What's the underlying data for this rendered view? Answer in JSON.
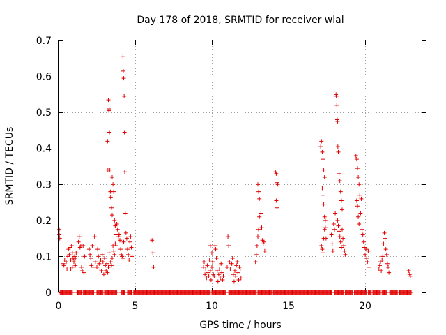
{
  "chart_data": {
    "type": "scatter",
    "title": "Day 178 of 2018, SRMTID for receiver wlal",
    "xlabel": "GPS time / hours",
    "ylabel": "SRMTID / TECUs",
    "xlim": [
      0,
      24
    ],
    "ylim": [
      0,
      0.7
    ],
    "x_ticks": [
      0,
      5,
      10,
      15,
      20
    ],
    "x_tick_labels": [
      "0",
      "5",
      "10",
      "15",
      "20"
    ],
    "y_ticks": [
      0,
      0.1,
      0.2,
      0.3,
      0.4,
      0.5,
      0.6,
      0.7
    ],
    "y_tick_labels": [
      "0",
      "0.1",
      "0.2",
      "0.3",
      "0.4",
      "0.5",
      "0.6",
      "0.7"
    ],
    "grid": true,
    "marker": "plus",
    "color": "#e00000",
    "series": [
      {
        "name": "SRMTID",
        "points": [
          [
            0.05,
            0.175
          ],
          [
            0.05,
            0.16
          ],
          [
            0.08,
            0.15
          ],
          [
            0.3,
            0.08
          ],
          [
            0.35,
            0.075
          ],
          [
            0.4,
            0.09
          ],
          [
            0.5,
            0.085
          ],
          [
            0.55,
            0.065
          ],
          [
            0.6,
            0.1
          ],
          [
            0.65,
            0.12
          ],
          [
            0.7,
            0.105
          ],
          [
            0.75,
            0.125
          ],
          [
            0.8,
            0.09
          ],
          [
            0.85,
            0.13
          ],
          [
            0.9,
            0.11
          ],
          [
            0.95,
            0.095
          ],
          [
            1.0,
            0.085
          ],
          [
            1.05,
            0.1
          ],
          [
            1.1,
            0.075
          ],
          [
            1.15,
            0.11
          ],
          [
            0.8,
            0.065
          ],
          [
            0.9,
            0.07
          ],
          [
            1.0,
            0.09
          ],
          [
            1.1,
            0.095
          ],
          [
            1.3,
            0.14
          ],
          [
            1.35,
            0.155
          ],
          [
            1.4,
            0.125
          ],
          [
            1.45,
            0.13
          ],
          [
            1.5,
            0.07
          ],
          [
            1.55,
            0.06
          ],
          [
            1.6,
            0.13
          ],
          [
            1.65,
            0.055
          ],
          [
            1.7,
            0.1
          ],
          [
            2.0,
            0.12
          ],
          [
            2.05,
            0.105
          ],
          [
            2.1,
            0.095
          ],
          [
            2.15,
            0.075
          ],
          [
            2.2,
            0.13
          ],
          [
            2.25,
            0.07
          ],
          [
            2.35,
            0.155
          ],
          [
            2.4,
            0.085
          ],
          [
            2.5,
            0.07
          ],
          [
            2.55,
            0.12
          ],
          [
            2.6,
            0.1
          ],
          [
            2.65,
            0.08
          ],
          [
            2.7,
            0.065
          ],
          [
            2.75,
            0.09
          ],
          [
            2.8,
            0.06
          ],
          [
            2.85,
            0.105
          ],
          [
            2.9,
            0.085
          ],
          [
            2.95,
            0.05
          ],
          [
            3.0,
            0.095
          ],
          [
            3.05,
            0.075
          ],
          [
            3.1,
            0.06
          ],
          [
            3.15,
            0.08
          ],
          [
            3.2,
            0.055
          ],
          [
            3.25,
            0.07
          ],
          [
            3.2,
            0.42
          ],
          [
            3.22,
            0.34
          ],
          [
            3.25,
            0.535
          ],
          [
            3.28,
            0.505
          ],
          [
            3.3,
            0.51
          ],
          [
            3.32,
            0.445
          ],
          [
            3.35,
            0.34
          ],
          [
            3.38,
            0.28
          ],
          [
            3.4,
            0.265
          ],
          [
            3.45,
            0.235
          ],
          [
            3.5,
            0.215
          ],
          [
            3.55,
            0.13
          ],
          [
            3.5,
            0.32
          ],
          [
            3.55,
            0.3
          ],
          [
            3.6,
            0.28
          ],
          [
            3.65,
            0.2
          ],
          [
            3.7,
            0.185
          ],
          [
            3.75,
            0.16
          ],
          [
            3.3,
            0.11
          ],
          [
            3.4,
            0.085
          ],
          [
            3.45,
            0.075
          ],
          [
            3.5,
            0.095
          ],
          [
            3.6,
            0.115
          ],
          [
            3.65,
            0.105
          ],
          [
            3.7,
            0.135
          ],
          [
            3.75,
            0.13
          ],
          [
            3.8,
            0.19
          ],
          [
            3.85,
            0.175
          ],
          [
            3.9,
            0.155
          ],
          [
            3.95,
            0.16
          ],
          [
            4.0,
            0.145
          ],
          [
            4.05,
            0.12
          ],
          [
            4.1,
            0.105
          ],
          [
            4.15,
            0.1
          ],
          [
            4.2,
            0.095
          ],
          [
            4.25,
            0.14
          ],
          [
            4.2,
            0.655
          ],
          [
            4.22,
            0.615
          ],
          [
            4.25,
            0.595
          ],
          [
            4.28,
            0.545
          ],
          [
            4.3,
            0.445
          ],
          [
            4.32,
            0.335
          ],
          [
            4.35,
            0.22
          ],
          [
            4.4,
            0.165
          ],
          [
            4.45,
            0.15
          ],
          [
            4.5,
            0.12
          ],
          [
            4.55,
            0.105
          ],
          [
            4.6,
            0.09
          ],
          [
            4.65,
            0.14
          ],
          [
            4.7,
            0.155
          ],
          [
            4.75,
            0.125
          ],
          [
            4.8,
            0.1
          ],
          [
            6.1,
            0.145
          ],
          [
            6.15,
            0.11
          ],
          [
            6.2,
            0.07
          ],
          [
            9.45,
            0.07
          ],
          [
            9.5,
            0.085
          ],
          [
            9.55,
            0.05
          ],
          [
            9.6,
            0.065
          ],
          [
            9.65,
            0.04
          ],
          [
            9.7,
            0.075
          ],
          [
            9.75,
            0.055
          ],
          [
            9.8,
            0.045
          ],
          [
            9.85,
            0.09
          ],
          [
            9.9,
            0.06
          ],
          [
            9.95,
            0.035
          ],
          [
            10.0,
            0.07
          ],
          [
            9.9,
            0.13
          ],
          [
            10.0,
            0.11
          ],
          [
            10.05,
            0.085
          ],
          [
            10.1,
            0.05
          ],
          [
            10.15,
            0.045
          ],
          [
            10.2,
            0.13
          ],
          [
            10.25,
            0.12
          ],
          [
            10.3,
            0.095
          ],
          [
            10.35,
            0.06
          ],
          [
            10.4,
            0.03
          ],
          [
            10.45,
            0.05
          ],
          [
            10.5,
            0.065
          ],
          [
            10.55,
            0.04
          ],
          [
            10.6,
            0.08
          ],
          [
            10.65,
            0.055
          ],
          [
            10.7,
            0.035
          ],
          [
            10.75,
            0.045
          ],
          [
            11.0,
            0.07
          ],
          [
            11.05,
            0.155
          ],
          [
            11.1,
            0.13
          ],
          [
            11.15,
            0.085
          ],
          [
            11.2,
            0.065
          ],
          [
            11.3,
            0.08
          ],
          [
            11.35,
            0.095
          ],
          [
            11.4,
            0.05
          ],
          [
            11.45,
            0.03
          ],
          [
            11.5,
            0.06
          ],
          [
            11.55,
            0.045
          ],
          [
            11.6,
            0.075
          ],
          [
            11.65,
            0.085
          ],
          [
            11.7,
            0.055
          ],
          [
            11.75,
            0.035
          ],
          [
            11.8,
            0.07
          ],
          [
            11.85,
            0.065
          ],
          [
            11.9,
            0.04
          ],
          [
            12.85,
            0.085
          ],
          [
            12.9,
            0.105
          ],
          [
            12.95,
            0.13
          ],
          [
            13.0,
            0.155
          ],
          [
            13.05,
            0.175
          ],
          [
            13.1,
            0.21
          ],
          [
            13.0,
            0.3
          ],
          [
            13.05,
            0.28
          ],
          [
            13.1,
            0.26
          ],
          [
            13.2,
            0.22
          ],
          [
            13.25,
            0.18
          ],
          [
            13.3,
            0.145
          ],
          [
            13.35,
            0.135
          ],
          [
            13.4,
            0.14
          ],
          [
            13.45,
            0.115
          ],
          [
            14.15,
            0.335
          ],
          [
            14.2,
            0.33
          ],
          [
            14.25,
            0.305
          ],
          [
            14.3,
            0.3
          ],
          [
            14.2,
            0.255
          ],
          [
            14.25,
            0.235
          ],
          [
            17.1,
            0.405
          ],
          [
            17.15,
            0.42
          ],
          [
            17.2,
            0.39
          ],
          [
            17.25,
            0.37
          ],
          [
            17.3,
            0.34
          ],
          [
            17.35,
            0.32
          ],
          [
            17.2,
            0.29
          ],
          [
            17.25,
            0.27
          ],
          [
            17.3,
            0.245
          ],
          [
            17.35,
            0.21
          ],
          [
            17.4,
            0.18
          ],
          [
            17.45,
            0.15
          ],
          [
            17.15,
            0.13
          ],
          [
            17.2,
            0.12
          ],
          [
            17.25,
            0.11
          ],
          [
            17.3,
            0.15
          ],
          [
            17.35,
            0.175
          ],
          [
            17.4,
            0.2
          ],
          [
            17.8,
            0.16
          ],
          [
            17.85,
            0.135
          ],
          [
            17.9,
            0.115
          ],
          [
            17.95,
            0.19
          ],
          [
            18.0,
            0.175
          ],
          [
            18.05,
            0.22
          ],
          [
            18.1,
            0.55
          ],
          [
            18.12,
            0.545
          ],
          [
            18.15,
            0.52
          ],
          [
            18.18,
            0.48
          ],
          [
            18.2,
            0.475
          ],
          [
            18.22,
            0.405
          ],
          [
            18.25,
            0.39
          ],
          [
            18.3,
            0.33
          ],
          [
            18.35,
            0.31
          ],
          [
            18.4,
            0.28
          ],
          [
            18.45,
            0.255
          ],
          [
            18.5,
            0.23
          ],
          [
            18.2,
            0.2
          ],
          [
            18.25,
            0.185
          ],
          [
            18.3,
            0.17
          ],
          [
            18.35,
            0.155
          ],
          [
            18.4,
            0.14
          ],
          [
            18.45,
            0.125
          ],
          [
            18.5,
            0.175
          ],
          [
            18.55,
            0.15
          ],
          [
            18.6,
            0.13
          ],
          [
            18.65,
            0.115
          ],
          [
            18.7,
            0.105
          ],
          [
            19.4,
            0.38
          ],
          [
            19.45,
            0.37
          ],
          [
            19.5,
            0.345
          ],
          [
            19.55,
            0.32
          ],
          [
            19.6,
            0.3
          ],
          [
            19.65,
            0.27
          ],
          [
            19.45,
            0.255
          ],
          [
            19.5,
            0.24
          ],
          [
            19.55,
            0.21
          ],
          [
            19.6,
            0.19
          ],
          [
            19.7,
            0.22
          ],
          [
            19.75,
            0.26
          ],
          [
            19.8,
            0.175
          ],
          [
            19.85,
            0.16
          ],
          [
            19.9,
            0.14
          ],
          [
            19.95,
            0.125
          ],
          [
            20.0,
            0.105
          ],
          [
            20.05,
            0.12
          ],
          [
            20.1,
            0.095
          ],
          [
            20.15,
            0.085
          ],
          [
            20.2,
            0.115
          ],
          [
            20.25,
            0.07
          ],
          [
            20.9,
            0.065
          ],
          [
            20.95,
            0.075
          ],
          [
            21.0,
            0.085
          ],
          [
            21.05,
            0.06
          ],
          [
            21.1,
            0.09
          ],
          [
            21.15,
            0.1
          ],
          [
            21.2,
            0.135
          ],
          [
            21.25,
            0.165
          ],
          [
            21.3,
            0.15
          ],
          [
            21.35,
            0.12
          ],
          [
            21.4,
            0.105
          ],
          [
            21.45,
            0.08
          ],
          [
            21.5,
            0.07
          ],
          [
            21.55,
            0.055
          ],
          [
            22.85,
            0.06
          ],
          [
            22.9,
            0.05
          ],
          [
            22.95,
            0.045
          ]
        ],
        "zero_ranges": [
          [
            0.1,
            0.9
          ],
          [
            1.2,
            1.5
          ],
          [
            1.6,
            2.3
          ],
          [
            2.5,
            2.9
          ],
          [
            3.0,
            3.8
          ],
          [
            4.1,
            4.3
          ],
          [
            4.5,
            4.8
          ],
          [
            4.9,
            9.9
          ],
          [
            10.0,
            10.9
          ],
          [
            11.1,
            12.9
          ],
          [
            13.0,
            13.9
          ],
          [
            14.0,
            17.2
          ],
          [
            17.3,
            17.8
          ],
          [
            18.0,
            18.6
          ],
          [
            18.7,
            19.2
          ],
          [
            19.3,
            20.1
          ],
          [
            20.2,
            20.4
          ],
          [
            20.5,
            21.0
          ],
          [
            21.1,
            21.4
          ],
          [
            21.6,
            22.1
          ],
          [
            22.2,
            23.0
          ]
        ]
      }
    ]
  }
}
